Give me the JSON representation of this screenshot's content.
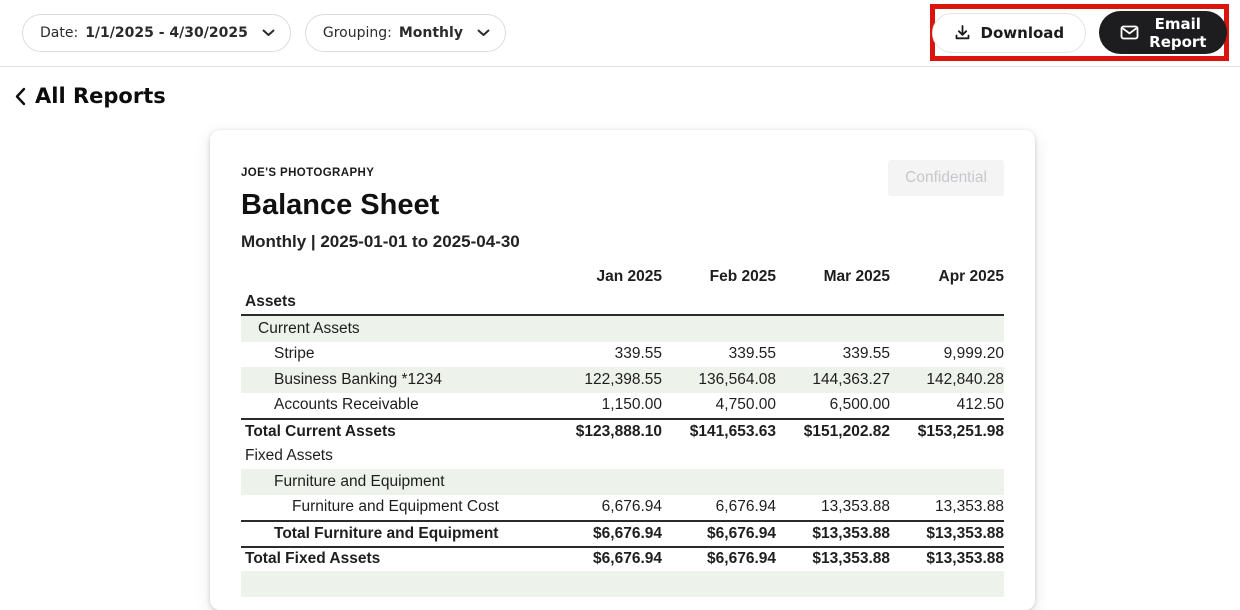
{
  "toolbar": {
    "date_filter": {
      "label": "Date:",
      "value": "1/1/2025 - 4/30/2025"
    },
    "grouping_filter": {
      "label": "Grouping:",
      "value": "Monthly"
    },
    "download_button": "Download",
    "email_button": "Email Report"
  },
  "nav": {
    "back_link": "All Reports"
  },
  "report": {
    "company_name": "JOE'S PHOTOGRAPHY",
    "title": "Balance Sheet",
    "subtitle": "Monthly | 2025-01-01 to 2025-04-30",
    "badge": "Confidential",
    "columns": [
      "Jan 2025",
      "Feb 2025",
      "Mar 2025",
      "Apr 2025"
    ],
    "rows": [
      {
        "label": "Assets",
        "kind": "section",
        "level": 0,
        "shaded": false,
        "values": [
          "",
          "",
          "",
          ""
        ]
      },
      {
        "label": "Current Assets",
        "kind": "group",
        "level": 1,
        "shaded": true,
        "values": [
          "",
          "",
          "",
          ""
        ]
      },
      {
        "label": "Stripe",
        "kind": "item",
        "level": 2,
        "shaded": false,
        "values": [
          "339.55",
          "339.55",
          "339.55",
          "9,999.20"
        ]
      },
      {
        "label": "Business Banking *1234",
        "kind": "item",
        "level": 2,
        "shaded": true,
        "values": [
          "122,398.55",
          "136,564.08",
          "144,363.27",
          "142,840.28"
        ]
      },
      {
        "label": "Accounts Receivable",
        "kind": "item",
        "level": 2,
        "shaded": false,
        "values": [
          "1,150.00",
          "4,750.00",
          "6,500.00",
          "412.50"
        ]
      },
      {
        "label": "Total Current Assets",
        "kind": "total",
        "level": 0,
        "shaded": false,
        "border_top": true,
        "values": [
          "$123,888.10",
          "$141,653.63",
          "$151,202.82",
          "$153,251.98"
        ]
      },
      {
        "label": "Fixed Assets",
        "kind": "group",
        "level": 0,
        "shaded": false,
        "values": [
          "",
          "",
          "",
          ""
        ]
      },
      {
        "label": "Furniture and Equipment",
        "kind": "group",
        "level": 2,
        "shaded": true,
        "values": [
          "",
          "",
          "",
          ""
        ]
      },
      {
        "label": "Furniture and Equipment Cost",
        "kind": "item",
        "level": 3,
        "shaded": false,
        "values": [
          "6,676.94",
          "6,676.94",
          "13,353.88",
          "13,353.88"
        ]
      },
      {
        "label": "Total Furniture and Equipment",
        "kind": "total",
        "level": 2,
        "shaded": false,
        "border_top": true,
        "values": [
          "$6,676.94",
          "$6,676.94",
          "$13,353.88",
          "$13,353.88"
        ]
      },
      {
        "label": "Total Fixed Assets",
        "kind": "total",
        "level": 0,
        "shaded": false,
        "border_top": true,
        "values": [
          "$6,676.94",
          "$6,676.94",
          "$13,353.88",
          "$13,353.88"
        ]
      },
      {
        "label": "",
        "kind": "group",
        "level": 0,
        "shaded": true,
        "values": [
          "",
          "",
          "",
          ""
        ]
      }
    ]
  },
  "colors": {
    "accent_annotation": "#da150f",
    "row_shade": "#edf3ea",
    "rule_dark": "#2b2b2b",
    "badge_bg": "#f4f4f5",
    "badge_text": "#c8c8cc",
    "button_dark": "#1d1d1f"
  }
}
